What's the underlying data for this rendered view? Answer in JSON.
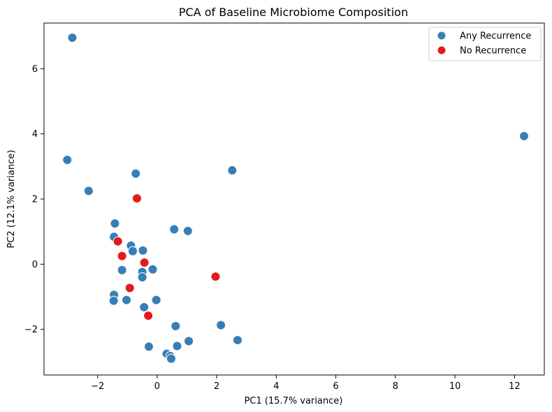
{
  "chart_data": {
    "type": "scatter",
    "title": "PCA of Baseline Microbiome Composition",
    "xlabel": "PC1 (15.7% variance)",
    "ylabel": "PC2 (12.1% variance)",
    "xlim": [
      -3.8,
      13.0
    ],
    "ylim": [
      -3.4,
      7.4
    ],
    "xticks": [
      -2,
      0,
      2,
      4,
      6,
      8,
      10,
      12
    ],
    "yticks": [
      -2,
      0,
      2,
      4,
      6
    ],
    "grid": false,
    "legend_position": "top-right",
    "series": [
      {
        "name": "Any Recurrence",
        "color": "#377eb8",
        "x": [
          -2.85,
          -3.02,
          -2.3,
          -0.72,
          2.52,
          12.32,
          -1.42,
          -1.45,
          -0.88,
          -0.82,
          -0.48,
          0.57,
          1.03,
          -1.18,
          -0.5,
          -0.5,
          -0.15,
          -1.45,
          -1.46,
          -1.03,
          -0.03,
          -0.44,
          0.62,
          2.14,
          2.7,
          1.06,
          0.67,
          -0.28,
          0.32,
          0.44,
          0.47
        ],
        "y": [
          6.95,
          3.2,
          2.25,
          2.78,
          2.88,
          3.93,
          1.25,
          0.84,
          0.57,
          0.4,
          0.42,
          1.07,
          1.02,
          -0.18,
          -0.24,
          -0.4,
          -0.16,
          -0.94,
          -1.12,
          -1.1,
          -1.1,
          -1.32,
          -1.9,
          -1.87,
          -2.33,
          -2.36,
          -2.51,
          -2.53,
          -2.75,
          -2.82,
          -2.9
        ]
      },
      {
        "name": "No Recurrence",
        "color": "#e41a1c",
        "x": [
          -0.68,
          -1.32,
          -1.18,
          -0.43,
          -0.92,
          1.96,
          -0.3
        ],
        "y": [
          2.02,
          0.7,
          0.25,
          0.05,
          -0.73,
          -0.38,
          -1.58
        ]
      }
    ]
  }
}
